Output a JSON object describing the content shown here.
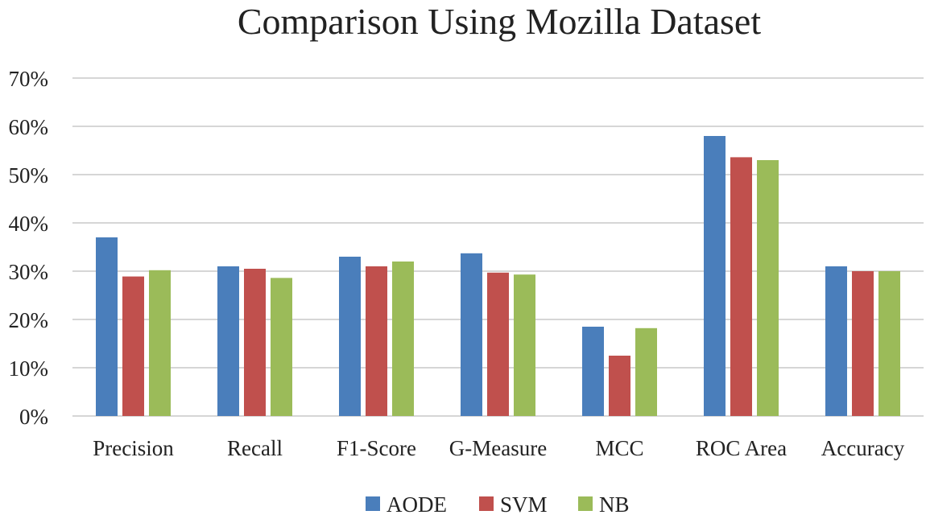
{
  "chart_data": {
    "type": "bar",
    "title": "Comparison Using Mozilla Dataset",
    "xlabel": "",
    "ylabel": "",
    "ylim": [
      0,
      70
    ],
    "y_ticks": [
      {
        "value": 0,
        "label": "0%"
      },
      {
        "value": 10,
        "label": "10%"
      },
      {
        "value": 20,
        "label": "20%"
      },
      {
        "value": 30,
        "label": "30%"
      },
      {
        "value": 40,
        "label": "40%"
      },
      {
        "value": 50,
        "label": "50%"
      },
      {
        "value": 60,
        "label": "60%"
      },
      {
        "value": 70,
        "label": "70%"
      }
    ],
    "grid": true,
    "legend_position": "bottom",
    "categories": [
      "Precision",
      "Recall",
      "F1-Score",
      "G-Measure",
      "MCC",
      "ROC Area",
      "Accuracy"
    ],
    "series": [
      {
        "name": "AODE",
        "color": "#4a7ebb",
        "values": [
          37,
          31,
          33,
          33.7,
          18.5,
          58,
          31
        ]
      },
      {
        "name": "SVM",
        "color": "#c0504d",
        "values": [
          28.9,
          30.5,
          31,
          29.7,
          12.5,
          53.6,
          30
        ]
      },
      {
        "name": "NB",
        "color": "#9bbb59",
        "values": [
          30.2,
          28.6,
          32,
          29.3,
          18.2,
          53,
          30
        ]
      }
    ]
  }
}
